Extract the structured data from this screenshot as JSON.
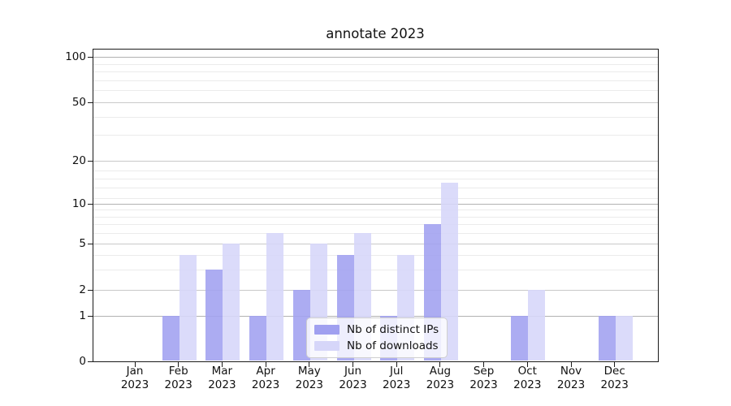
{
  "title": "annotate 2023",
  "chart_data": {
    "type": "bar",
    "title": "annotate 2023",
    "categories": [
      "Jan 2023",
      "Feb 2023",
      "Mar 2023",
      "Apr 2023",
      "May 2023",
      "Jun 2023",
      "Jul 2023",
      "Aug 2023",
      "Sep 2023",
      "Oct 2023",
      "Nov 2023",
      "Dec 2023"
    ],
    "series": [
      {
        "name": "Nb of distinct IPs",
        "color": "#a0a0f0",
        "values": [
          0,
          1,
          3,
          1,
          2,
          4,
          1,
          7,
          0,
          1,
          0,
          1
        ]
      },
      {
        "name": "Nb of downloads",
        "color": "#d6d6f9",
        "values": [
          0,
          4,
          5,
          6,
          5,
          6,
          4,
          14,
          0,
          2,
          0,
          1
        ]
      }
    ],
    "y_axis": {
      "ticks": [
        0,
        1,
        2,
        5,
        10,
        20,
        50,
        100
      ],
      "minor_gridlines": [
        3,
        4,
        6,
        7,
        8,
        9,
        11,
        13,
        15,
        17,
        30,
        40,
        60,
        70,
        80,
        90
      ],
      "scale": "log-like"
    },
    "grid": true,
    "legend_position": "lower center"
  }
}
